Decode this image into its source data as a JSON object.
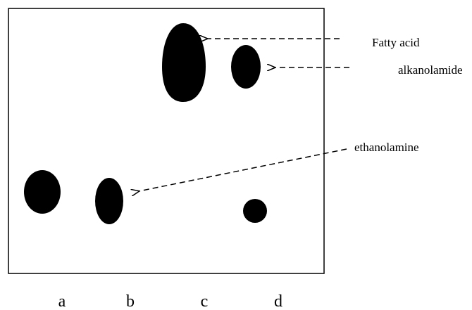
{
  "labels": {
    "fatty_acid": "Fatty acid",
    "alkanolamide": "alkanolamide",
    "ethanolamine": "ethanolamine"
  },
  "lanes": [
    "a",
    "b",
    "c",
    "d"
  ]
}
